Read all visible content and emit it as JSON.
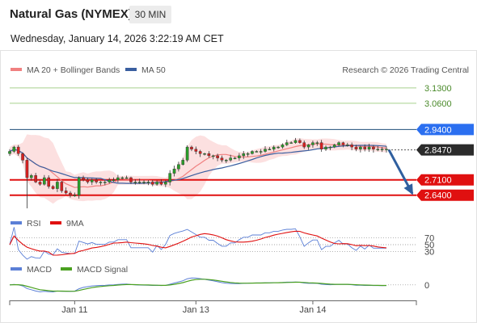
{
  "header": {
    "title": "Natural Gas (NYMEX)",
    "timeframe": "30 MIN",
    "datetime": "Wednesday, January 14, 2026 3:22:19 AM CET"
  },
  "colors": {
    "resistance_line": "#a8d08d",
    "pivot_line": "#1f4e79",
    "pivot_tag": "#2b6ff0",
    "support_line": "#e01010",
    "price_tag": "#2b2b2b",
    "bollinger_band": "#fbdada",
    "ma20": "#f08080",
    "ma50": "#3a5fa0",
    "candle_up": "#2a9d2a",
    "candle_down": "#d62020",
    "forecast_arrow": "#2f5f9f",
    "rsi": "#5b7fd6",
    "rsi_9ma": "#e01010",
    "macd": "#5b7fd6",
    "macd_signal": "#4aa020"
  },
  "legend": {
    "ma20": "MA 20 + Bollinger Bands",
    "ma50": "MA 50",
    "credit": "Research © 2026 Trading Central"
  },
  "chart_data": [
    {
      "type": "candlestick",
      "panel": "price",
      "ylim": [
        2.58,
        3.17
      ],
      "x_axis": {
        "labels": [
          "Jan 11",
          "Jan 13",
          "Jan 14"
        ],
        "label_index": [
          15,
          43,
          70
        ]
      },
      "levels": [
        {
          "value": 3.13,
          "label": "3.1300",
          "kind": "resistance"
        },
        {
          "value": 3.06,
          "label": "3.0600",
          "kind": "resistance"
        },
        {
          "value": 2.94,
          "label": "2.9400",
          "kind": "pivot"
        },
        {
          "value": 2.847,
          "label": "2.8470",
          "kind": "last"
        },
        {
          "value": 2.71,
          "label": "2.7100",
          "kind": "support"
        },
        {
          "value": 2.64,
          "label": "2.6400",
          "kind": "support"
        }
      ],
      "close": [
        2.84,
        2.86,
        2.83,
        2.8,
        2.72,
        2.73,
        2.7,
        2.69,
        2.72,
        2.68,
        2.67,
        2.7,
        2.66,
        2.65,
        2.64,
        2.64,
        2.72,
        2.71,
        2.7,
        2.71,
        2.7,
        2.7,
        2.7,
        2.71,
        2.71,
        2.72,
        2.72,
        2.72,
        2.7,
        2.7,
        2.7,
        2.7,
        2.7,
        2.69,
        2.7,
        2.69,
        2.7,
        2.74,
        2.76,
        2.78,
        2.8,
        2.86,
        2.85,
        2.84,
        2.83,
        2.83,
        2.82,
        2.82,
        2.81,
        2.8,
        2.8,
        2.81,
        2.81,
        2.82,
        2.83,
        2.83,
        2.84,
        2.84,
        2.84,
        2.85,
        2.85,
        2.86,
        2.86,
        2.87,
        2.88,
        2.88,
        2.89,
        2.88,
        2.86,
        2.87,
        2.88,
        2.88,
        2.85,
        2.86,
        2.86,
        2.87,
        2.88,
        2.87,
        2.87,
        2.86,
        2.85,
        2.86,
        2.85,
        2.86,
        2.85,
        2.85,
        2.85,
        2.85
      ],
      "forecast": {
        "from": 2.847,
        "to": 2.64
      }
    },
    {
      "type": "line",
      "panel": "rsi",
      "series_names": [
        "RSI",
        "9MA"
      ],
      "levels": [
        70,
        50,
        30
      ],
      "ylim": [
        20,
        80
      ]
    },
    {
      "type": "line",
      "panel": "macd",
      "series_names": [
        "MACD",
        "MACD Signal"
      ],
      "levels": [
        0
      ],
      "ylim": [
        -0.06,
        0.04
      ]
    }
  ]
}
